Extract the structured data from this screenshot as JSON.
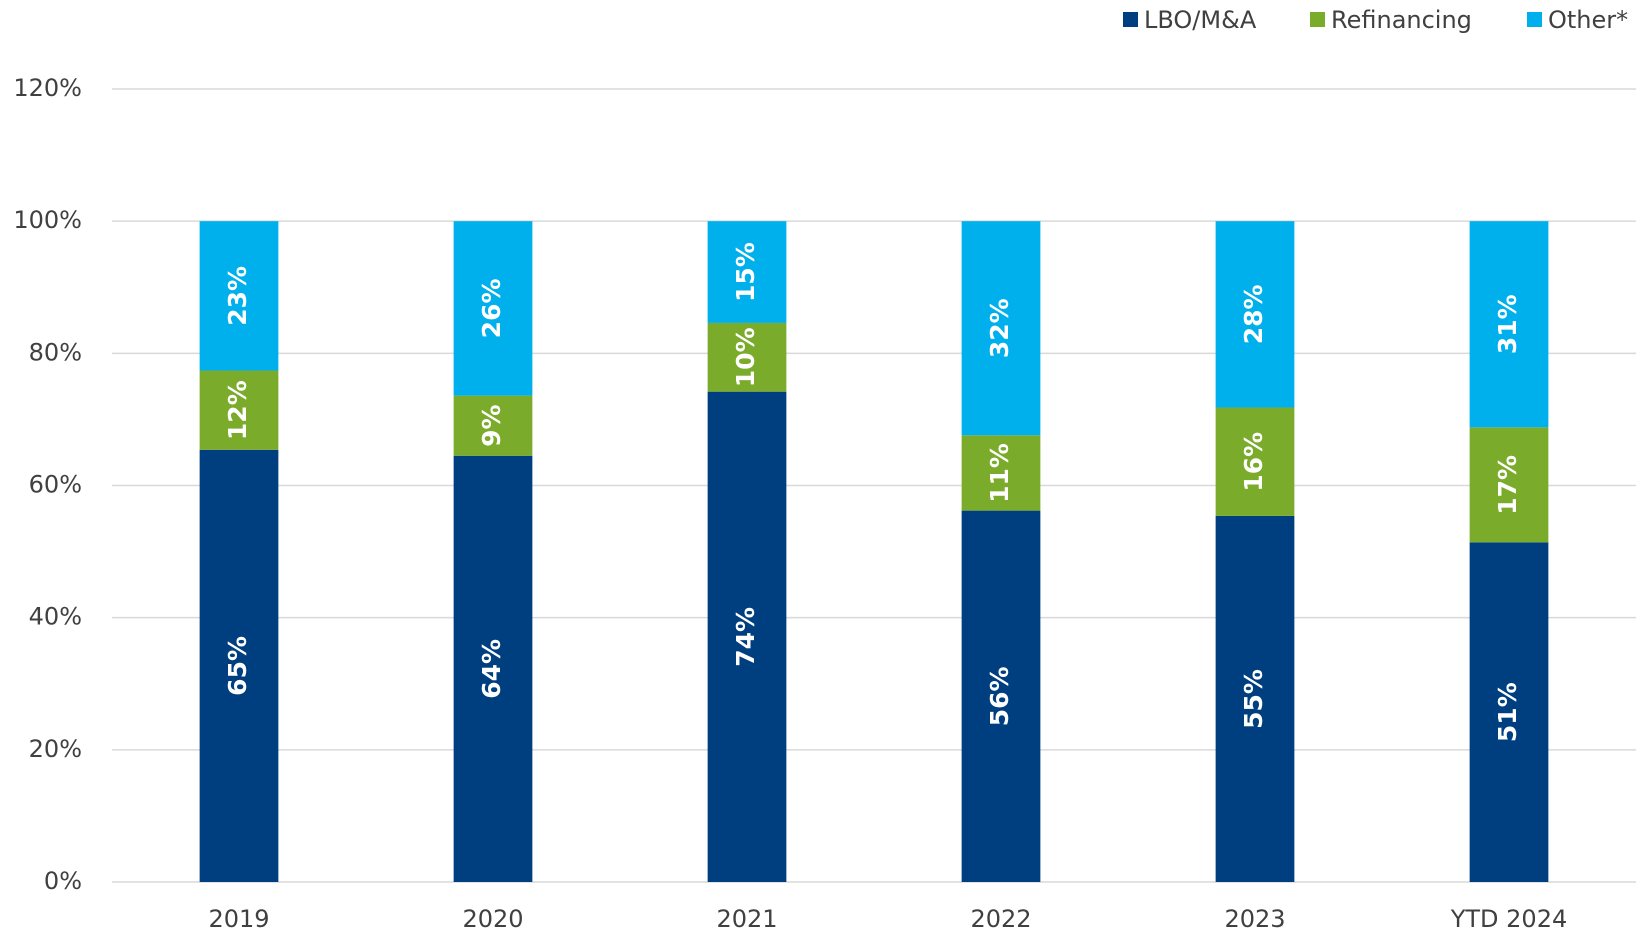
{
  "chart_data": {
    "type": "stacked_bar",
    "categories": [
      "2019",
      "2020",
      "2021",
      "2022",
      "2023",
      "YTD 2024"
    ],
    "series": [
      {
        "name": "LBO/M&A",
        "color": "#003f7f",
        "values": [
          65.4,
          64.5,
          74.2,
          56.2,
          55.4,
          51.4
        ],
        "value_labels": [
          "65%",
          "64%",
          "74%",
          "56%",
          "55%",
          "51%"
        ]
      },
      {
        "name": "Refinancing",
        "color": "#7aab2b",
        "values": [
          12.0,
          9.1,
          10.4,
          11.4,
          16.4,
          17.4
        ],
        "value_labels": [
          "12%",
          "9%",
          "10%",
          "11%",
          "16%",
          "17%"
        ]
      },
      {
        "name": "Other*",
        "color": "#00b0ec",
        "values": [
          22.6,
          26.4,
          15.4,
          32.4,
          28.2,
          31.2
        ],
        "value_labels": [
          "23%",
          "26%",
          "15%",
          "32%",
          "28%",
          "31%"
        ]
      }
    ],
    "ylim": [
      0,
      120
    ],
    "yticks": [
      {
        "value": 0,
        "label": "0%"
      },
      {
        "value": 20,
        "label": "20%"
      },
      {
        "value": 40,
        "label": "40%"
      },
      {
        "value": 60,
        "label": "60%"
      },
      {
        "value": 80,
        "label": "80%"
      },
      {
        "value": 100,
        "label": "100%"
      },
      {
        "value": 120,
        "label": "120%"
      }
    ],
    "grid": true,
    "legend": "top-right"
  }
}
